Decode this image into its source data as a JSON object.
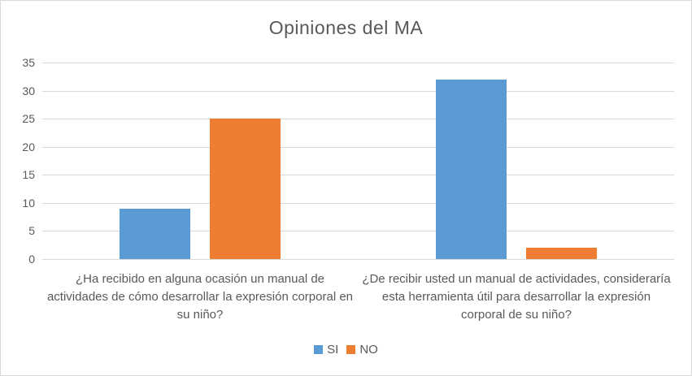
{
  "chart_data": {
    "type": "bar",
    "title": "Opiniones del MA",
    "categories": [
      "¿Ha recibido en alguna ocasión un manual de actividades de cómo desarrollar la expresión corporal en su niño?",
      "¿De recibir usted un manual de actividades, consideraría esta herramienta útil para desarrollar la expresión corporal de su niño?"
    ],
    "series": [
      {
        "name": "SI",
        "color": "#5B9BD5",
        "values": [
          9,
          32
        ]
      },
      {
        "name": "NO",
        "color": "#ED7D31",
        "values": [
          25,
          2
        ]
      }
    ],
    "ylim": [
      0,
      35
    ],
    "yticks": [
      0,
      5,
      10,
      15,
      20,
      25,
      30,
      35
    ],
    "xlabel": "",
    "ylabel": "",
    "grid": true,
    "legend_position": "bottom"
  },
  "style": {
    "text_color": "#595959",
    "grid_color": "#d9d9d9",
    "axis_line_color": "#d9d9d9",
    "border_color": "#d9d9d9",
    "background_color": "#ffffff"
  }
}
